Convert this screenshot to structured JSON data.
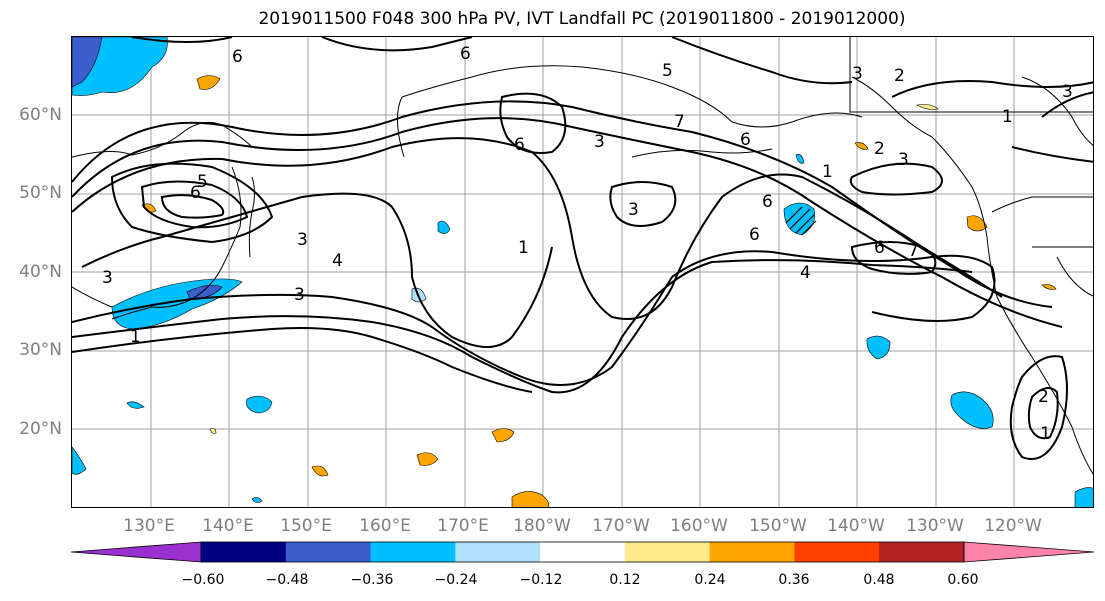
{
  "title": "2019011500 F048 300 hPa PV, IVT Landfall PC (2019011800 - 2019012000)",
  "lat_labels": [
    "60°N",
    "50°N",
    "40°N",
    "30°N",
    "20°N"
  ],
  "lon_labels": [
    "130°E",
    "140°E",
    "150°E",
    "160°E",
    "170°E",
    "180°W",
    "170°W",
    "160°W",
    "150°W",
    "140°W",
    "130°W",
    "120°W"
  ],
  "contour_labels": [
    "6",
    "6",
    "3",
    "2",
    "1",
    "3",
    "6",
    "5",
    "6",
    "3",
    "4",
    "3",
    "6",
    "3",
    "7",
    "6",
    "3",
    "2",
    "3",
    "1",
    "6",
    "4",
    "6",
    "7",
    "3",
    "1",
    "2",
    "1",
    "1",
    "5"
  ],
  "colorbar": {
    "tick_labels": [
      "−0.60",
      "−0.48",
      "−0.36",
      "−0.24",
      "−0.12",
      "0.12",
      "0.24",
      "0.36",
      "0.48",
      "0.60"
    ],
    "colors": [
      "#9b30d0",
      "#000080",
      "#3a5fcd",
      "#00bfff",
      "#b0e2ff",
      "#ffffff",
      "#ffec8b",
      "#ffa500",
      "#ff4000",
      "#b22222",
      "#ff82ab"
    ]
  },
  "colors": {
    "negative_fill": "#00bfff",
    "negative_strong": "#3a5fcd",
    "positive_fill": "#ffa500",
    "grid": "#a0a0a0",
    "axis_text": "#7f7f7f"
  }
}
